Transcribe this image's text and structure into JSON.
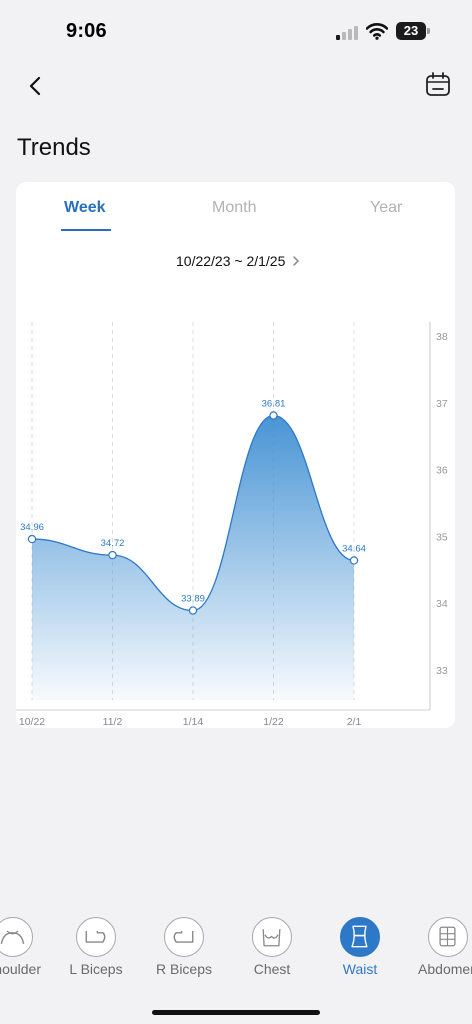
{
  "status_bar": {
    "time": "9:06",
    "battery": "23"
  },
  "header": {
    "title": "Trends",
    "back_icon": "chevron-left-icon",
    "calendar_icon": "calendar-icon"
  },
  "tabs": [
    {
      "label": "Week",
      "active": true
    },
    {
      "label": "Month",
      "active": false
    },
    {
      "label": "Year",
      "active": false
    }
  ],
  "date_range": "10/22/23 ~ 2/1/25",
  "chart_data": {
    "type": "area",
    "categories": [
      "10/22",
      "11/2",
      "1/14",
      "1/22",
      "2/1"
    ],
    "values": [
      34.96,
      34.72,
      33.89,
      36.81,
      34.64
    ],
    "data_labels": [
      "34.96",
      "34.72",
      "33.89",
      "36.81",
      "34.64"
    ],
    "y_ticks": [
      "33",
      "34",
      "35",
      "36",
      "37",
      "38"
    ],
    "ylim": [
      32.5,
      38.3
    ],
    "y_axis_side": "right",
    "grid": "vertical dashed",
    "color": "#2d78c7",
    "title": "",
    "xlabel": "",
    "ylabel": ""
  },
  "body_parts": [
    {
      "label": "Shoulder",
      "icon": "shoulder-icon",
      "active": false
    },
    {
      "label": "L Biceps",
      "icon": "left-biceps-icon",
      "active": false
    },
    {
      "label": "R Biceps",
      "icon": "right-biceps-icon",
      "active": false
    },
    {
      "label": "Chest",
      "icon": "chest-icon",
      "active": false
    },
    {
      "label": "Waist",
      "icon": "waist-icon",
      "active": true
    },
    {
      "label": "Abdomen",
      "icon": "abdomen-icon",
      "active": false
    }
  ],
  "colors": {
    "accent": "#2a6fbb",
    "active_tab": "#2d78c7",
    "inactive": "#b2b2b4",
    "background": "#f2f2f4"
  }
}
